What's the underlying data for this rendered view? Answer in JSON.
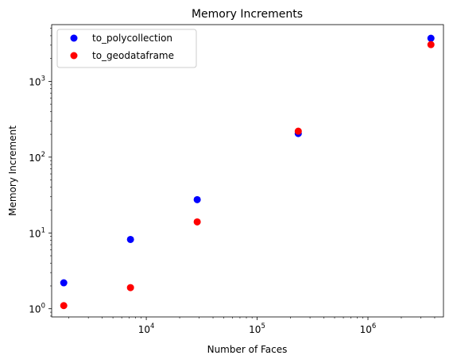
{
  "chart_data": {
    "type": "scatter",
    "title": "Memory Increments",
    "xlabel": "Number of Faces",
    "ylabel": "Memory Increment",
    "xscale": "log",
    "yscale": "log",
    "xlim": [
      1400,
      4800000
    ],
    "ylim": [
      0.78,
      5600
    ],
    "grid": false,
    "legend_position": "upper-left",
    "x_ticks": [
      {
        "value": 10000,
        "base": "10",
        "exp": "4"
      },
      {
        "value": 100000,
        "base": "10",
        "exp": "5"
      },
      {
        "value": 1000000,
        "base": "10",
        "exp": "6"
      }
    ],
    "y_ticks": [
      {
        "value": 1,
        "base": "10",
        "exp": "0"
      },
      {
        "value": 10,
        "base": "10",
        "exp": "1"
      },
      {
        "value": 100,
        "base": "10",
        "exp": "2"
      },
      {
        "value": 1000,
        "base": "10",
        "exp": "3"
      }
    ],
    "series": [
      {
        "name": "to_polycollection",
        "color": "#0000ff",
        "x": [
          1800,
          7200,
          28800,
          235000,
          3700000
        ],
        "y": [
          2.2,
          8.2,
          27.5,
          205,
          3700
        ]
      },
      {
        "name": "to_geodataframe",
        "color": "#ff0000",
        "x": [
          1800,
          7200,
          28800,
          235000,
          3700000
        ],
        "y": [
          1.1,
          1.9,
          14,
          220,
          3050
        ]
      }
    ]
  }
}
